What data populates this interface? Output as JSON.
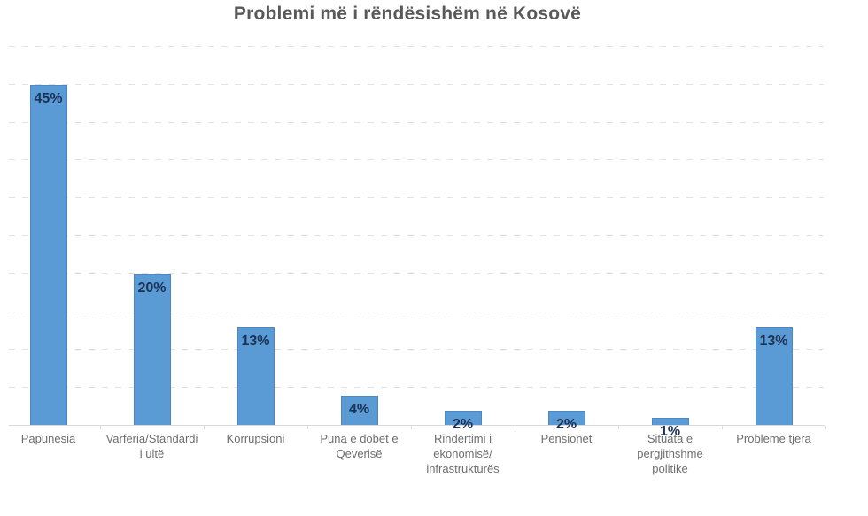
{
  "chart_data": {
    "type": "bar",
    "title": "Problemi më i rëndësishëm në Kosovë",
    "categories": [
      "Papunësia",
      "Varfëria/Standardi\ni ultë",
      "Korrupsioni",
      "Puna e dobët e\nQeverisë",
      "Rindërtimi i\nekonomisë/\ninfrastrukturës",
      "Pensionet",
      "Situata e\npergjithshme\npolitike",
      "Probleme tjera"
    ],
    "values": [
      45,
      20,
      13,
      4,
      2,
      2,
      1,
      13
    ],
    "data_labels": [
      "45%",
      "20%",
      "13%",
      "4%",
      "2%",
      "2%",
      "1%",
      "13%"
    ],
    "xlabel": "",
    "ylabel": "",
    "ylim": [
      0,
      50
    ],
    "gridline_step": 5,
    "grid": "dashed-horizontal",
    "legend": "none",
    "y_axis_tick_labels_visible": false,
    "data_label_position": "inside-end"
  },
  "colors": {
    "bar_fill": "#5b9bd5",
    "bar_border": "#4d88c4",
    "data_label": "#1c3154",
    "category_label": "#6e6e6e",
    "title": "#595959",
    "gridline": "#e2e2e2",
    "axis_line": "#d9d9d9"
  }
}
